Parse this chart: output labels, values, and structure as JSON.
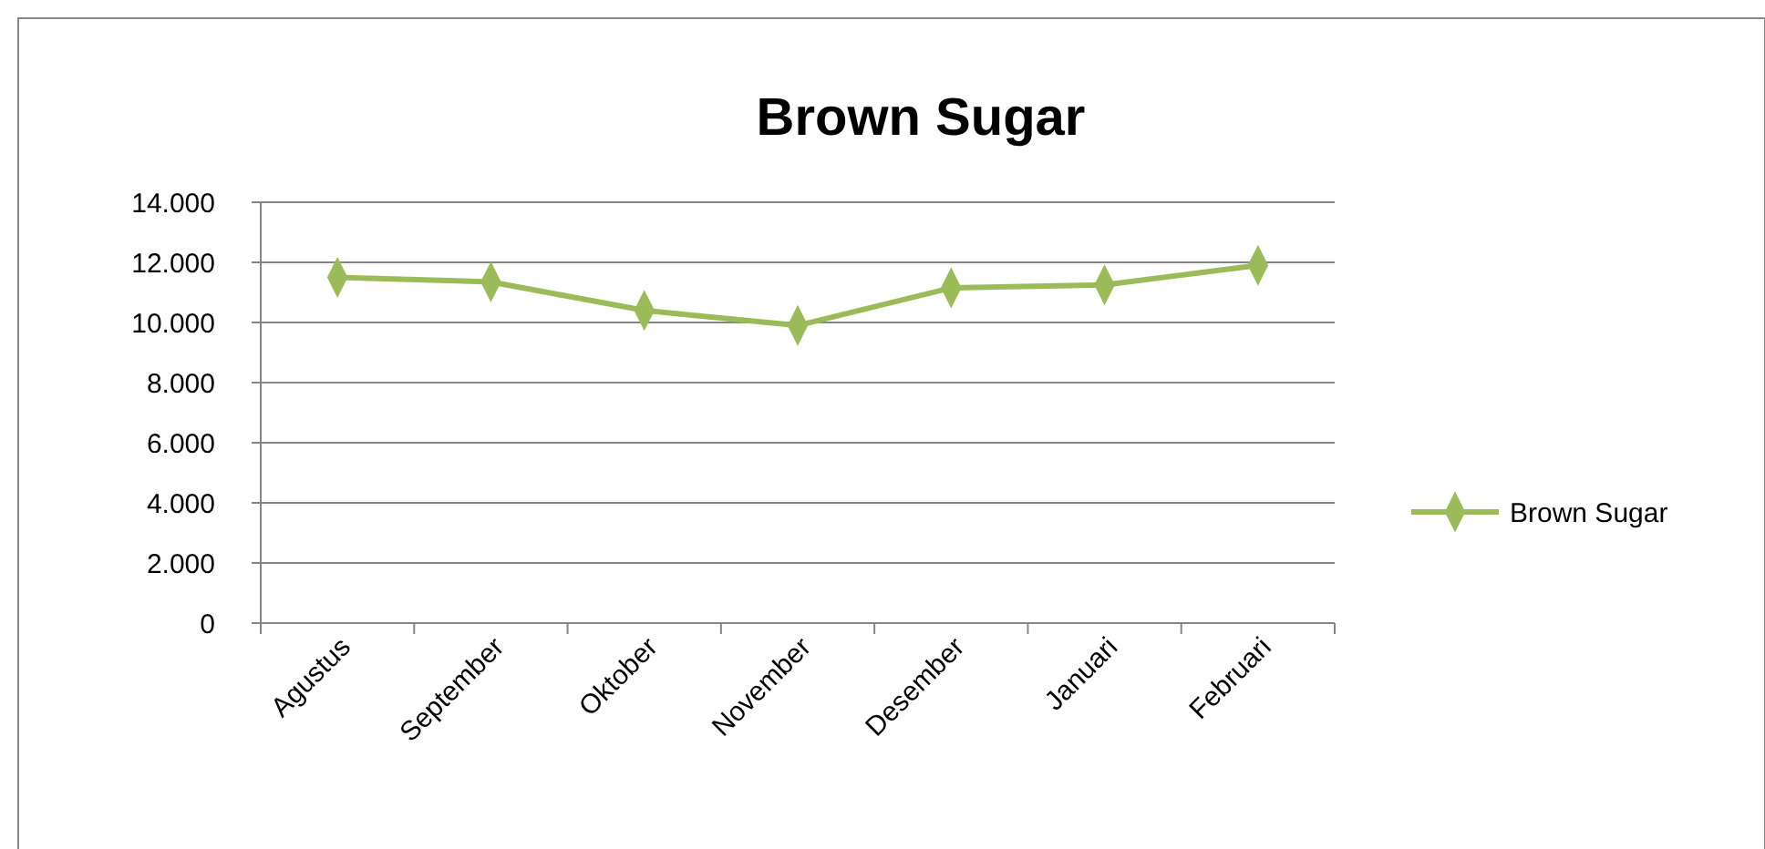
{
  "chart_data": {
    "type": "line",
    "title": "Brown Sugar",
    "categories": [
      "Agustus",
      "September",
      "Oktober",
      "November",
      "Desember",
      "Januari",
      "Februari"
    ],
    "series": [
      {
        "name": "Brown Sugar",
        "color": "#9bbb59",
        "values": [
          11500,
          11350,
          10400,
          9900,
          11150,
          11250,
          11900
        ]
      }
    ],
    "ylim": [
      0,
      14000
    ],
    "yticks": [
      0,
      {
        "value": 2000,
        "label": "2.000"
      },
      {
        "value": 4000,
        "label": "4.000"
      },
      {
        "value": 6000,
        "label": "6.000"
      },
      {
        "value": 8000,
        "label": "8.000"
      },
      {
        "value": 10000,
        "label": "10.000"
      },
      {
        "value": 12000,
        "label": "12.000"
      },
      {
        "value": 14000,
        "label": "14.000"
      }
    ],
    "grid": "y",
    "legend": "right",
    "marker": "diamond",
    "line_style": "solid"
  }
}
